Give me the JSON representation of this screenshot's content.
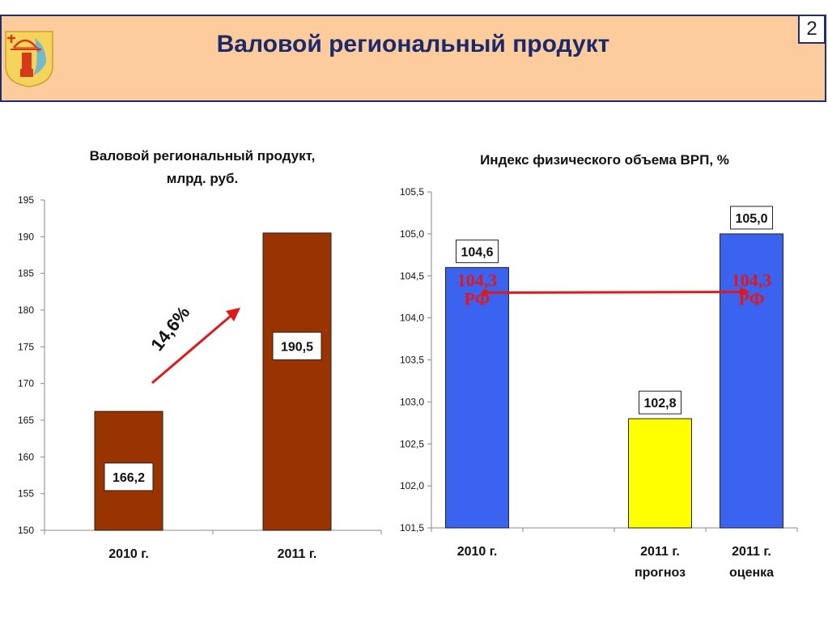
{
  "header": {
    "title": "Валовой региональный продукт",
    "page_number": "2"
  },
  "colors": {
    "header_bg": "#fccc9c",
    "header_border": "#202e6e",
    "left_bar": "#993300",
    "blue_bar": "#3a63f0",
    "yellow_bar": "#ffff00",
    "arrow": "#e0181c"
  },
  "icons": {
    "logo": "kirov-coat-of-arms"
  },
  "chart_data": [
    {
      "type": "bar",
      "title_lines": [
        "Валовой региональный продукт,",
        "млрд. руб."
      ],
      "categories": [
        "2010 г.",
        "2011 г."
      ],
      "values": [
        166.2,
        190.5
      ],
      "value_labels": [
        "166,2",
        "190,5"
      ],
      "ylim": [
        150,
        195
      ],
      "yticks": [
        "150",
        "155",
        "160",
        "165",
        "170",
        "175",
        "180",
        "185",
        "190",
        "195"
      ],
      "annotation": "14,6%",
      "grid": false
    },
    {
      "type": "bar",
      "title": "Индекс физического объема ВРП, %",
      "categories": [
        [
          "2010 г."
        ],
        [
          ""
        ],
        [
          "2011 г.",
          "прогноз"
        ],
        [
          "2011 г.",
          "оценка"
        ]
      ],
      "values": [
        104.6,
        null,
        102.8,
        105.0
      ],
      "value_labels": [
        "104,6",
        "",
        "102,8",
        "105,0"
      ],
      "ylim": [
        101.5,
        105.5
      ],
      "yticks": [
        "101,5",
        "102,0",
        "102,5",
        "103,0",
        "103,5",
        "104,0",
        "104,5",
        "105,0",
        "105,5"
      ],
      "reference": {
        "value": 104.3,
        "label_lines": [
          "104,3",
          "РФ"
        ]
      },
      "grid": false
    }
  ]
}
